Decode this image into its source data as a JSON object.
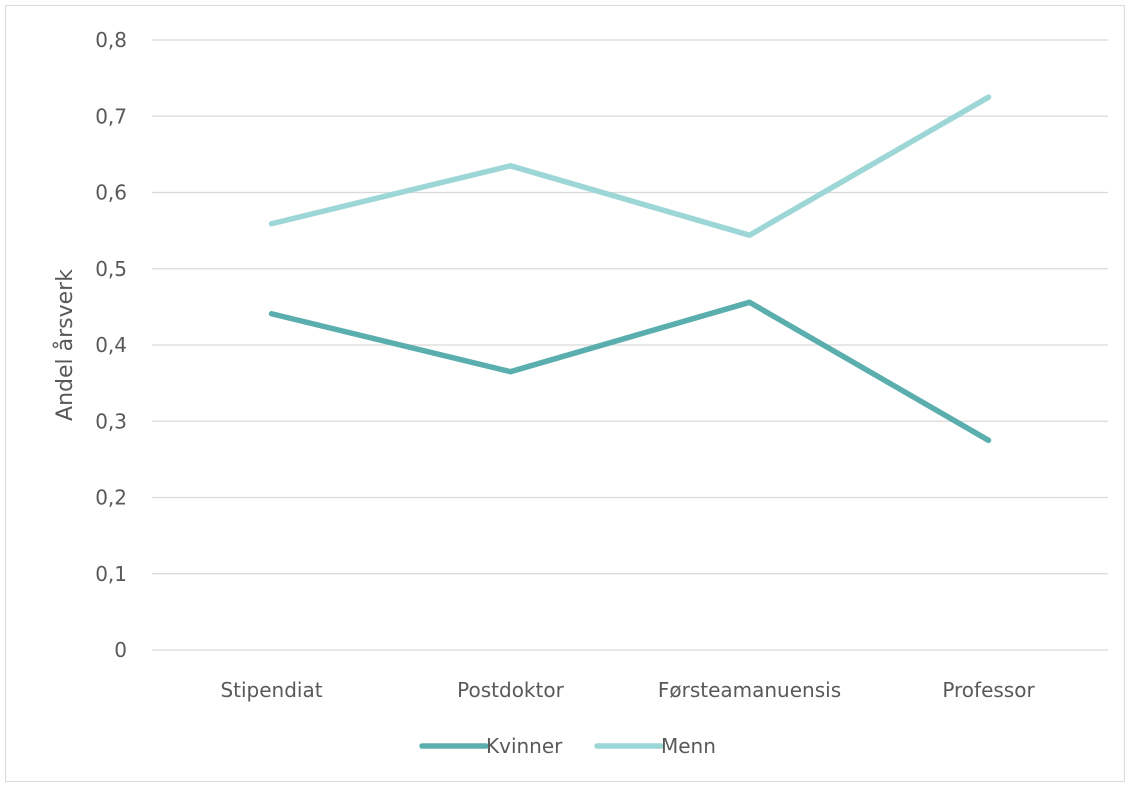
{
  "chart_data": {
    "type": "line",
    "title": "",
    "xlabel": "",
    "ylabel": "Andel årsverk",
    "categories": [
      "Stipendiat",
      "Postdoktor",
      "Førsteamanuensis",
      "Professor"
    ],
    "ylim": [
      0,
      0.8
    ],
    "yticks": [
      0,
      0.1,
      0.2,
      0.3,
      0.4,
      0.5,
      0.6,
      0.7,
      0.8
    ],
    "ytick_labels": [
      "0",
      "0,1",
      "0,2",
      "0,3",
      "0,4",
      "0,5",
      "0,6",
      "0,7",
      "0,8"
    ],
    "grid": true,
    "legend_position": "bottom",
    "series": [
      {
        "name": "Kvinner",
        "color": "#5aaeae",
        "values": [
          0.441,
          0.365,
          0.456,
          0.275
        ]
      },
      {
        "name": "Menn",
        "color": "#9dd6d6",
        "values": [
          0.559,
          0.635,
          0.544,
          0.725
        ]
      }
    ]
  }
}
